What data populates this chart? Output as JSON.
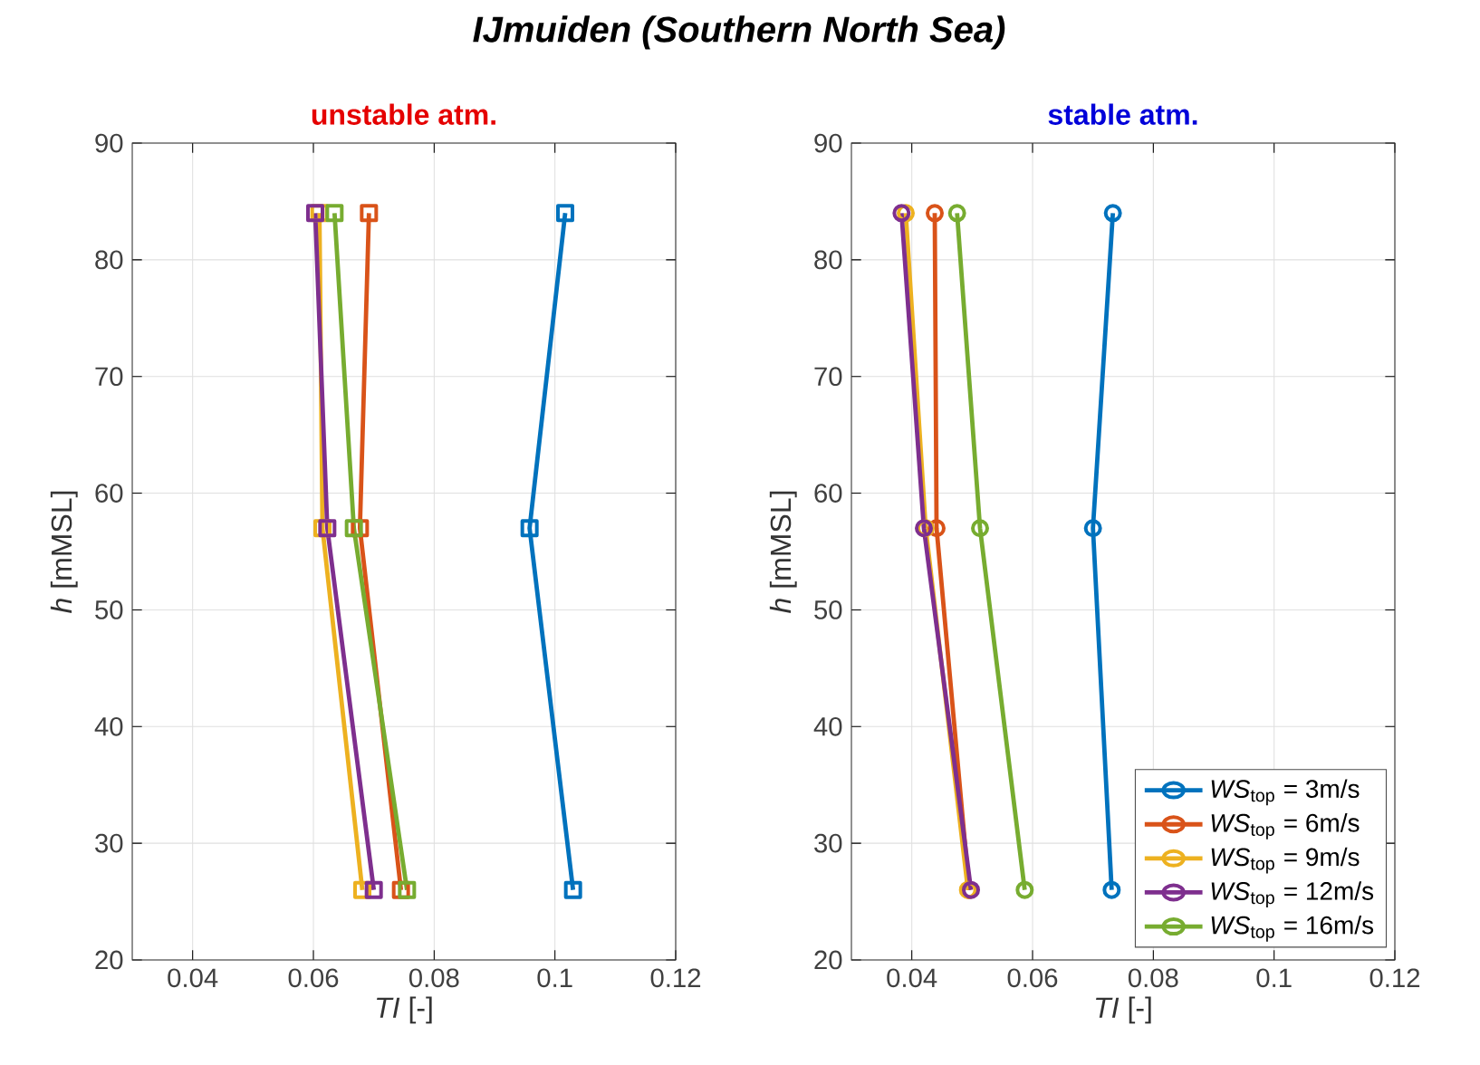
{
  "chart_data": [
    {
      "type": "line",
      "title": "IJmuiden (Southern North Sea)",
      "subtitle": "unstable atm.",
      "xlabel": "*TI* [-]",
      "ylabel": "*h* [mMSL]",
      "marker": "square",
      "grid": true,
      "xlim": [
        0.03,
        0.12
      ],
      "xticks": [
        0.04,
        0.06,
        0.08,
        0.1,
        0.12
      ],
      "ylim": [
        20,
        90
      ],
      "yticks": [
        20,
        30,
        40,
        50,
        60,
        70,
        80,
        90
      ],
      "series": [
        {
          "color": "#0072bd",
          "x": [
            0.1017,
            0.0958,
            0.103
          ],
          "values": [
            84,
            57,
            26
          ]
        },
        {
          "color": "#d95319",
          "x": [
            0.0692,
            0.0677,
            0.0745
          ],
          "values": [
            84,
            57,
            26
          ]
        },
        {
          "color": "#edb120",
          "x": [
            0.061,
            0.0615,
            0.0681
          ],
          "values": [
            84,
            57,
            26
          ]
        },
        {
          "color": "#7e2f8e",
          "x": [
            0.0603,
            0.0623,
            0.07
          ],
          "values": [
            84,
            57,
            26
          ]
        },
        {
          "color": "#77ac30",
          "x": [
            0.0635,
            0.0667,
            0.0755
          ],
          "values": [
            84,
            57,
            26
          ]
        }
      ]
    },
    {
      "type": "line",
      "subtitle": "stable atm.",
      "xlabel": "*TI* [-]",
      "ylabel": "*h* [mMSL]",
      "marker": "circle",
      "grid": true,
      "legend": "bottom right",
      "xlim": [
        0.03,
        0.12
      ],
      "xticks": [
        0.04,
        0.06,
        0.08,
        0.1,
        0.12
      ],
      "ylim": [
        20,
        90
      ],
      "yticks": [
        20,
        30,
        40,
        50,
        60,
        70,
        80,
        90
      ],
      "series": [
        {
          "name": "*WS*$_{top}$ = 3m/s",
          "color": "#0072bd",
          "x": [
            0.0733,
            0.07,
            0.0731
          ],
          "values": [
            84,
            57,
            26
          ]
        },
        {
          "name": "*WS*$_{top}$ = 6m/s",
          "color": "#d95319",
          "x": [
            0.0438,
            0.0441,
            0.0495
          ],
          "values": [
            84,
            57,
            26
          ]
        },
        {
          "name": "*WS*$_{top}$ = 9m/s",
          "color": "#edb120",
          "x": [
            0.039,
            0.0423,
            0.0493
          ],
          "values": [
            84,
            57,
            26
          ]
        },
        {
          "name": "*WS*$_{top}$ = 12m/s",
          "color": "#7e2f8e",
          "x": [
            0.0383,
            0.042,
            0.0498
          ],
          "values": [
            84,
            57,
            26
          ]
        },
        {
          "name": "*WS*$_{top}$ = 16m/s",
          "color": "#77ac30",
          "x": [
            0.0475,
            0.0513,
            0.0587
          ],
          "values": [
            84,
            57,
            26
          ]
        }
      ]
    }
  ]
}
